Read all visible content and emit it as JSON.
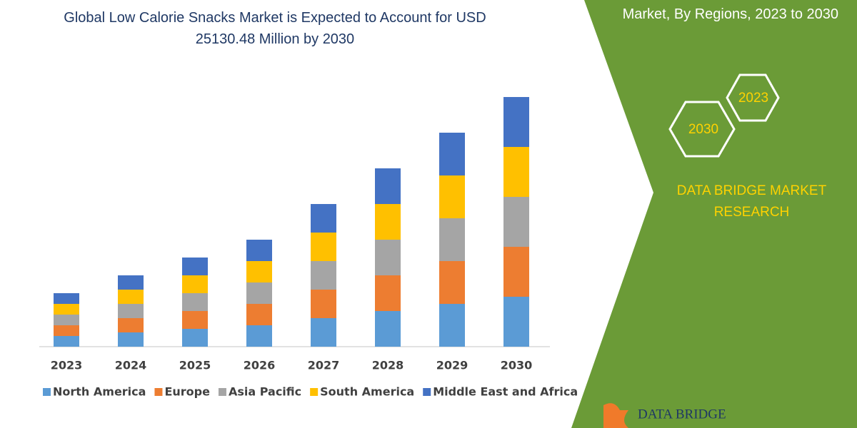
{
  "chart_data": {
    "type": "stacked-bar",
    "title": "Global Low Calorie Snacks Market is Expected to Account for USD 25130.48 Million by 2030",
    "categories": [
      "2023",
      "2024",
      "2025",
      "2026",
      "2027",
      "2028",
      "2029",
      "2030"
    ],
    "series": [
      {
        "name": "North America",
        "color": "#5b9bd5",
        "values": [
          15,
          20,
          25,
          30,
          40,
          50,
          60,
          70
        ]
      },
      {
        "name": "Europe",
        "color": "#ed7d31",
        "values": [
          15,
          20,
          25,
          30,
          40,
          50,
          60,
          70
        ]
      },
      {
        "name": "Asia Pacific",
        "color": "#a5a5a5",
        "values": [
          15,
          20,
          25,
          30,
          40,
          50,
          60,
          70
        ]
      },
      {
        "name": "South America",
        "color": "#ffc000",
        "values": [
          15,
          20,
          25,
          30,
          40,
          50,
          60,
          70
        ]
      },
      {
        "name": "Middle East and Africa",
        "color": "#4472c4",
        "values": [
          15,
          20,
          25,
          30,
          40,
          50,
          60,
          70
        ]
      }
    ]
  },
  "panel": {
    "heading": "Market, By Regions, 2023 to 2030",
    "hex_labels": [
      "2023",
      "2030"
    ],
    "brand": "DATA BRIDGE MARKET RESEARCH",
    "logo": "DATA BRIDGE"
  }
}
